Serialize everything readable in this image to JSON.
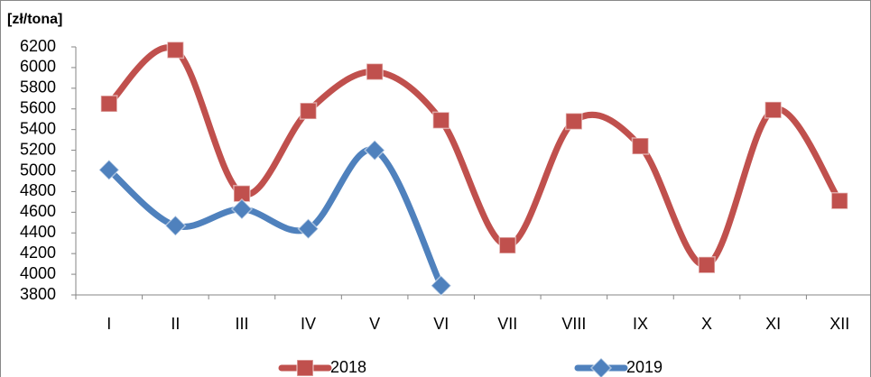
{
  "chart_data": {
    "type": "line",
    "y_label": "[zł/tona]",
    "categories": [
      "I",
      "II",
      "III",
      "IV",
      "V",
      "VI",
      "VII",
      "VIII",
      "IX",
      "X",
      "XI",
      "XII"
    ],
    "series": [
      {
        "name": "2018",
        "color": "#c0504d",
        "marker": "square",
        "values": [
          5650,
          6170,
          4780,
          5580,
          5960,
          5490,
          4280,
          5480,
          5240,
          4090,
          5590,
          4710
        ]
      },
      {
        "name": "2019",
        "color": "#4f81bd",
        "marker": "diamond",
        "values": [
          5010,
          4470,
          4630,
          4440,
          5200,
          3890,
          null,
          null,
          null,
          null,
          null,
          null
        ]
      }
    ],
    "ylim": [
      3800,
      6200
    ],
    "yticks": [
      3800,
      4000,
      4200,
      4400,
      4600,
      4800,
      5000,
      5200,
      5400,
      5600,
      5800,
      6000,
      6200
    ],
    "smooth": true,
    "legend": "bottom"
  }
}
